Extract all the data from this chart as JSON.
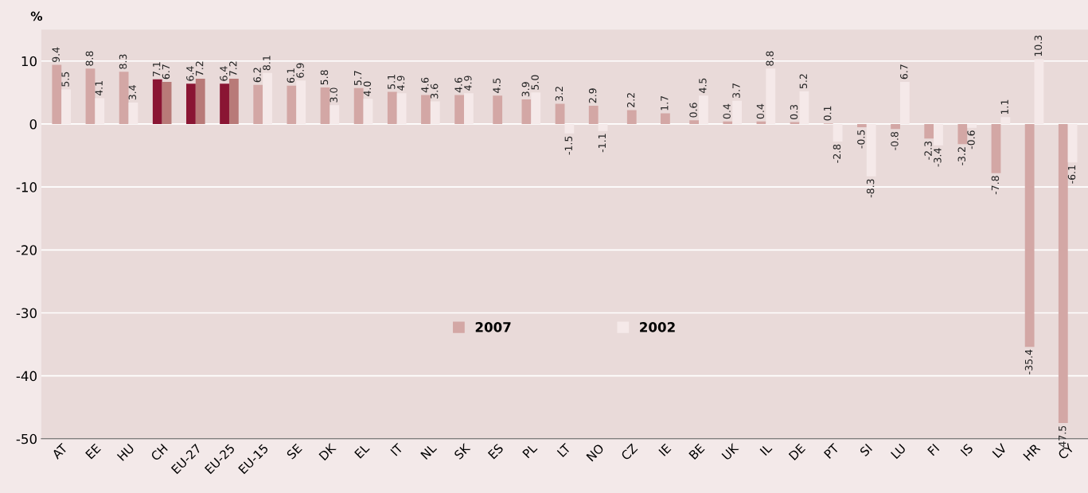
{
  "chart_data": {
    "type": "bar",
    "ylabel": "%",
    "categories": [
      "AT",
      "EE",
      "HU",
      "CH",
      "EU-27",
      "EU-25",
      "EU-15",
      "SE",
      "DK",
      "EL",
      "IT",
      "NL",
      "SK",
      "ES",
      "PL",
      "LT",
      "NO",
      "CZ",
      "IE",
      "BE",
      "UK",
      "IL",
      "DE",
      "PT",
      "SI",
      "LU",
      "FI",
      "IS",
      "LV",
      "HR",
      "CY"
    ],
    "series": [
      {
        "name": "2007",
        "color": "#d3a7a5",
        "colors": [
          "#d3a7a5",
          "#d3a7a5",
          "#d3a7a5",
          "#8a1533",
          "#8a1533",
          "#8a1533",
          "#d3a7a5",
          "#d3a7a5",
          "#d3a7a5",
          "#d3a7a5",
          "#d3a7a5",
          "#d3a7a5",
          "#d3a7a5",
          "#d3a7a5",
          "#d3a7a5",
          "#d3a7a5",
          "#d3a7a5",
          "#d3a7a5",
          "#d3a7a5",
          "#d3a7a5",
          "#d3a7a5",
          "#d3a7a5",
          "#d3a7a5",
          "#d3a7a5",
          "#d3a7a5",
          "#d3a7a5",
          "#d3a7a5",
          "#d3a7a5",
          "#d3a7a5",
          "#d3a7a5",
          "#d3a7a5"
        ],
        "values": [
          9.4,
          8.8,
          8.3,
          7.1,
          6.4,
          6.4,
          6.2,
          6.1,
          5.8,
          5.7,
          5.1,
          4.6,
          4.6,
          4.5,
          3.9,
          3.2,
          2.9,
          2.2,
          1.7,
          0.6,
          0.4,
          0.4,
          0.3,
          0.1,
          -0.5,
          -0.8,
          -2.3,
          -3.2,
          -7.8,
          -35.4,
          -47.5
        ],
        "value_labels": [
          "9.4",
          "8.8",
          "8.3",
          "7.1",
          "6.4",
          "6.4",
          "6.2",
          "6.1",
          "5.8",
          "5.7",
          "5.1",
          "4.6",
          "4.6",
          "4.5",
          "3.9",
          "3.2",
          "2.9",
          "2.2",
          "1.7",
          "0.6",
          "0.4",
          "0.4",
          "0.3",
          "0.1",
          "-0.5",
          "-0.8",
          "-2.3",
          "-3.2",
          "-7.8",
          "-35.4",
          "-47.5"
        ]
      },
      {
        "name": "2002",
        "color": "#f5e9e9",
        "colors": [
          "#f5e9e9",
          "#f5e9e9",
          "#f5e9e9",
          "#b87a78",
          "#b87a78",
          "#b87a78",
          "#f5e9e9",
          "#f5e9e9",
          "#f5e9e9",
          "#f5e9e9",
          "#f5e9e9",
          "#f5e9e9",
          "#f5e9e9",
          "#f5e9e9",
          "#f5e9e9",
          "#f5e9e9",
          "#f5e9e9",
          "#f5e9e9",
          "#f5e9e9",
          "#f5e9e9",
          "#f5e9e9",
          "#f5e9e9",
          "#f5e9e9",
          "#f5e9e9",
          "#f5e9e9",
          "#f5e9e9",
          "#f5e9e9",
          "#f5e9e9",
          "#f5e9e9",
          "#f5e9e9",
          "#f5e9e9"
        ],
        "values": [
          5.5,
          4.1,
          3.4,
          6.7,
          7.2,
          7.2,
          8.1,
          6.9,
          3.0,
          4.0,
          4.9,
          3.6,
          4.9,
          null,
          5.0,
          -1.5,
          -1.1,
          null,
          null,
          4.5,
          3.7,
          8.8,
          5.2,
          -2.8,
          -8.3,
          6.7,
          -3.4,
          -0.6,
          1.1,
          10.3,
          -6.1
        ],
        "value_labels": [
          "5.5",
          "4.1",
          "3.4",
          "6.7",
          "7.2",
          "7.2",
          "8.1",
          "6.9",
          "3.0",
          "4.0",
          "4.9",
          "3.6",
          "4.9",
          null,
          "5.0",
          "-1.5",
          "-1.1",
          null,
          null,
          "4.5",
          "3.7",
          "8.8",
          "5.2",
          "-2.8",
          "-8.3",
          "6.7",
          "-3.4",
          "-0.6",
          "1.1",
          "10.3",
          "-6.1"
        ]
      }
    ],
    "ylim": [
      -50,
      15
    ],
    "yticks": [
      -50,
      -40,
      -30,
      -20,
      -10,
      0,
      10
    ],
    "grid": "y",
    "legend": "center"
  }
}
